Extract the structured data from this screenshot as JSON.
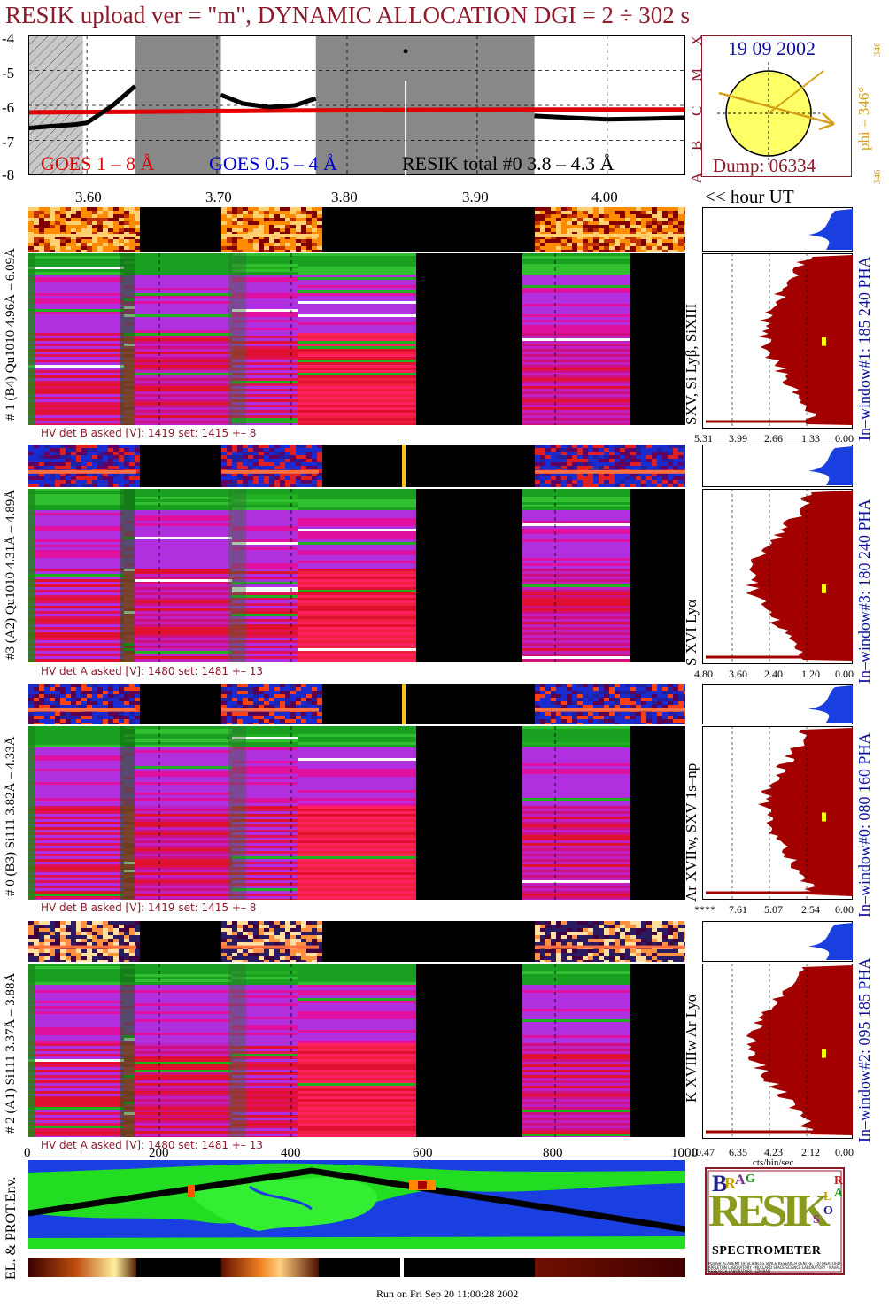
{
  "title": "RESIK upload ver = \"m\", DYNAMIC ALLOCATION  DGI =   2 ÷ 302 s",
  "colors": {
    "title": "#8b1a2b",
    "goes18": "#e00000",
    "goes054": "#0000d0",
    "resik": "#000000",
    "spectrum": "#a30000",
    "blue_panel": "#1a3fe0",
    "gold": "#d4a017"
  },
  "goes_panel": {
    "y_ticks": [
      "-4",
      "-5",
      "-6",
      "-7",
      "-8"
    ],
    "class_labels": [
      "X",
      "M",
      "C",
      "B",
      "A"
    ],
    "legend": {
      "goes18": "GOES 1 – 8 Å",
      "goes054": "GOES 0.5 – 4 Å",
      "resik": "RESIK total #0  3.8 – 4.3 Å"
    }
  },
  "sun_panel": {
    "date": "19 09 2002",
    "phi_label": "phi = 346°",
    "phi_small_top": "346",
    "phi_small_bottom": "346",
    "dump": "Dump: 06334"
  },
  "time_axis": {
    "ticks": [
      "3.60",
      "3.70",
      "3.80",
      "3.90",
      "4.00"
    ],
    "unit_label": "<< hour UT"
  },
  "channels": [
    {
      "id": "ch1",
      "side_label": "# 1 (B4) Qu1010 4.96Å – 6.09Å",
      "line_label": "SXV, Si Lyβ, SiXIII",
      "window_label": "In–window#1:  185 240 PHA",
      "hv_label": "HV det B asked [V]:  1419 set:  1415 +–    8",
      "pha_ticks": [
        "5.31",
        "3.99",
        "2.66",
        "1.33",
        "0.00"
      ]
    },
    {
      "id": "ch3",
      "side_label": "#3 (A2) Qu1010  4.31Å – 4.89Å",
      "line_label": "S XVI Lyα",
      "window_label": "In–window#3:  180 240 PHA",
      "hv_label": "HV det A asked [V]:  1480 set:  1481 +–    13",
      "pha_ticks": [
        "4.80",
        "3.60",
        "2.40",
        "1.20",
        "0.00"
      ]
    },
    {
      "id": "ch0",
      "side_label": "# 0 (B3) Si111  3.82Å – 4.33Å",
      "line_label": "Ar XVIIw, SXV 1s–np",
      "window_label": "In–window#0:  080 160 PHA",
      "hv_label": "HV det B asked [V]:  1419 set:  1415 +–    8",
      "pha_ticks": [
        "****",
        "7.61",
        "5.07",
        "2.54",
        "0.00"
      ]
    },
    {
      "id": "ch2",
      "side_label": "# 2 (A1) Si111  3.37Å – 3.88Å",
      "line_label": "K XVIIIw  Ar Lyα",
      "window_label": "In–window#2:  095 185 PHA",
      "hv_label": "HV det A asked [V]:  1480 set:  1481 +–    13",
      "pha_ticks": [
        "10.47",
        "6.35",
        "4.23",
        "2.12",
        "0.00"
      ]
    }
  ],
  "bottom_axis": {
    "ticks": [
      "0",
      "200",
      "400",
      "600",
      "800",
      "1000"
    ],
    "cts_label": "cts/bin/sec"
  },
  "env_panel": {
    "label": "EL. & PROT.Env."
  },
  "logo": {
    "main": "RESIK",
    "sub": "SPECTROMETER",
    "letters": [
      "B",
      "R",
      "A",
      "G",
      "S",
      "O",
      "L",
      "A",
      "R"
    ],
    "fine_print": "POLISH ACADEMY OF SCIENCES SPACE RESEARCH CENTRE  ·  RUTHERFORD APPLETON LABORATORY  ·  MULLARD SPACE SCIENCE LABORATORY  ·  NAVAL RESEARCH LABORATORY  ·  IZMIRAN"
  },
  "footer": "Run on Fri Sep 20 11:00:28 2002",
  "chart_data": {
    "type": "line",
    "x_unit": "hour UT",
    "xlim": [
      3.555,
      4.06
    ],
    "ylim": [
      -8,
      -4
    ],
    "y_scale": "log10 flux",
    "grid": true,
    "gaps_hours": [
      [
        3.555,
        3.597
      ],
      [
        3.637,
        3.703
      ],
      [
        3.776,
        3.944
      ]
    ],
    "series": [
      {
        "name": "GOES 1 – 8 Å",
        "x": [
          3.555,
          3.65,
          3.75,
          3.85,
          3.95,
          4.06
        ],
        "y": [
          -6.2,
          -6.18,
          -6.15,
          -6.13,
          -6.12,
          -6.12
        ]
      },
      {
        "name": "RESIK total #0  3.8 – 4.3 Å",
        "x": [
          3.555,
          3.57,
          3.59,
          3.6,
          3.62,
          3.637,
          3.703,
          3.72,
          3.74,
          3.76,
          3.776,
          3.944,
          3.97,
          4.0,
          4.03,
          4.06
        ],
        "y": [
          -6.65,
          -6.6,
          -6.55,
          -6.5,
          -6.0,
          -5.45,
          -5.7,
          -5.95,
          -6.05,
          -6.0,
          -5.8,
          -6.3,
          -6.35,
          -6.4,
          -6.38,
          -6.35
        ]
      }
    ]
  }
}
